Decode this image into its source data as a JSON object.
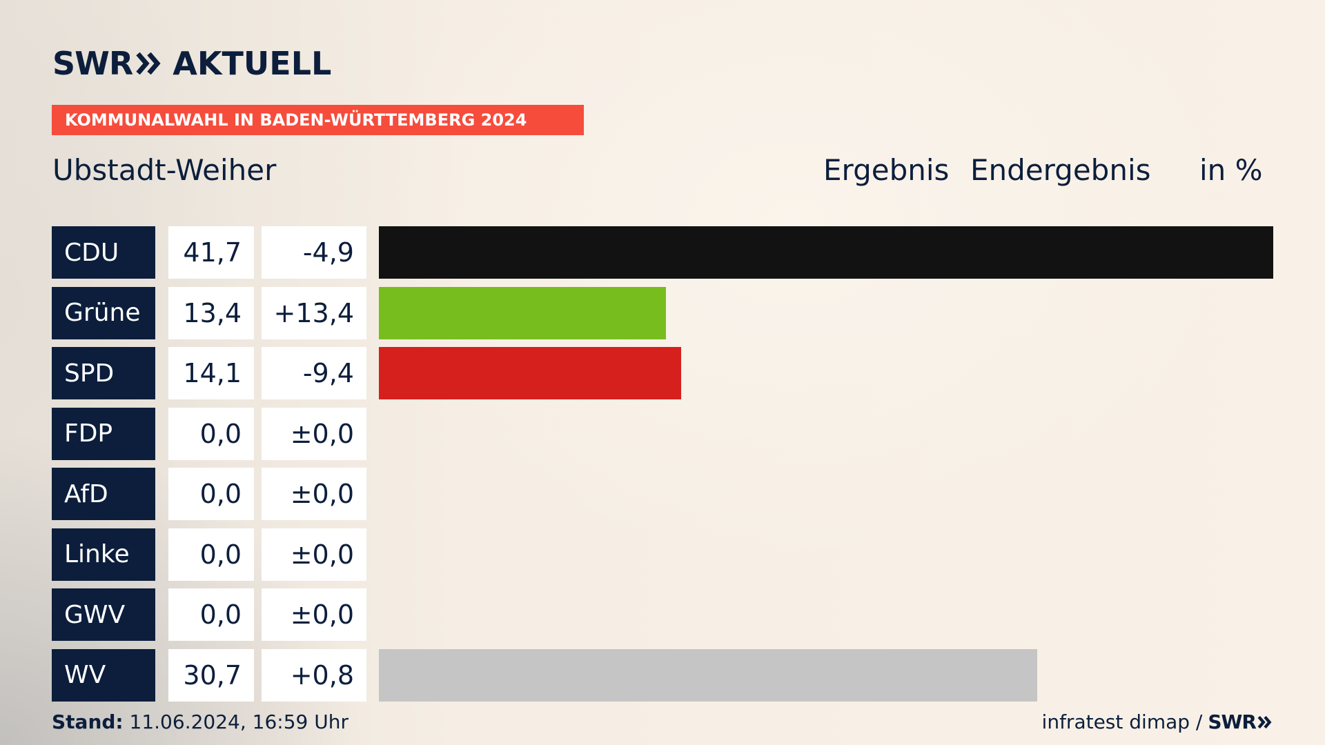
{
  "brand": {
    "swr": "SWR",
    "aktuell": "AKTUELL"
  },
  "banner": "KOMMUNALWAHL IN BADEN-WÜRTTEMBERG 2024",
  "place": "Ubstadt-Weiher",
  "headers": {
    "result": "Ergebnis",
    "final": "Endergebnis",
    "unit": "in %"
  },
  "footer": {
    "stand_label": "Stand:",
    "stand_value": "11.06.2024, 16:59 Uhr",
    "source": "infratest dimap /",
    "swr": "SWR"
  },
  "chart_data": {
    "type": "bar",
    "title": "Ubstadt-Weiher",
    "categories": [
      "CDU",
      "Grüne",
      "SPD",
      "FDP",
      "AfD",
      "Linke",
      "GWV",
      "WV"
    ],
    "values": [
      41.7,
      13.4,
      14.1,
      0.0,
      0.0,
      0.0,
      0.0,
      30.7
    ],
    "values_text": [
      "41,7",
      "13,4",
      "14,1",
      "0,0",
      "0,0",
      "0,0",
      "0,0",
      "30,7"
    ],
    "diffs_text": [
      "-4,9",
      "+13,4",
      "-9,4",
      "±0,0",
      "±0,0",
      "±0,0",
      "±0,0",
      "+0,8"
    ],
    "colors": [
      "#121212",
      "#78bd1e",
      "#d5201e",
      "#f0d516",
      "#1aa3dd",
      "#b4236b",
      "#8a8a8a",
      "#c5c5c5"
    ],
    "unit": "in %",
    "xlim": [
      0,
      41.7
    ]
  }
}
